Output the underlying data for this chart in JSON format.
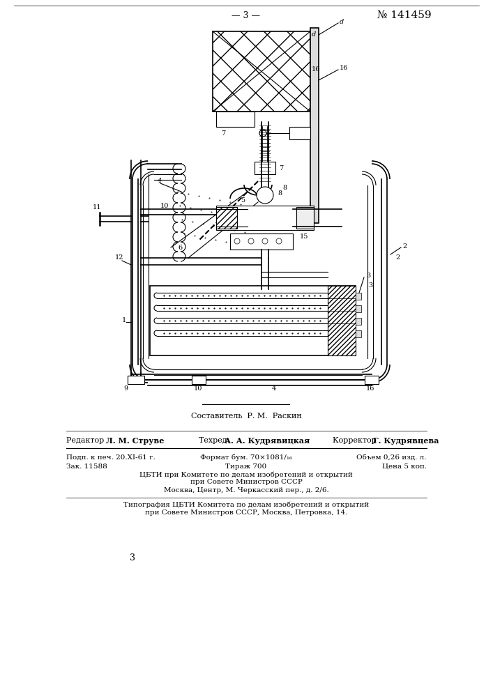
{
  "bg_color": "#ffffff",
  "page_num_top": "— 3 —",
  "patent_num": "№ 141459",
  "sestavitel_text": "Составитель  Р. М.  Раскин",
  "editor_label": "Редактор",
  "editor_name": "Л. М. Струве",
  "tehred_label": "Техред",
  "tehred_name": "А. А. Кудрявицкая",
  "korrektor_label": "Корректор",
  "korrektor_name": "Г. Кудрявцева",
  "podp_text": "Подп. к печ. 20.XI-61 г.",
  "zak_text": "Зак. 11588",
  "format_text": "Формат бум. 70×1081/₁₆",
  "tirazh_text": "Тираж 700",
  "obem_text": "Объем 0,26 изд. л.",
  "cena_text": "Цена 5 коп.",
  "tsbti_line1": "ЦБТИ при Комитете по делам изобретений и открытий",
  "tsbti_line2": "при Совете Министров СССР",
  "tsbti_line3": "Москва, Центр, М. Черкасский пер., д. 2/6.",
  "tipografia_line1": "Типография ЦБТИ Комитета по делам изобретений и открытий",
  "tipografia_line2": "при Совете Министров СССР, Москва, Петровка, 14.",
  "bottom_num": "3"
}
